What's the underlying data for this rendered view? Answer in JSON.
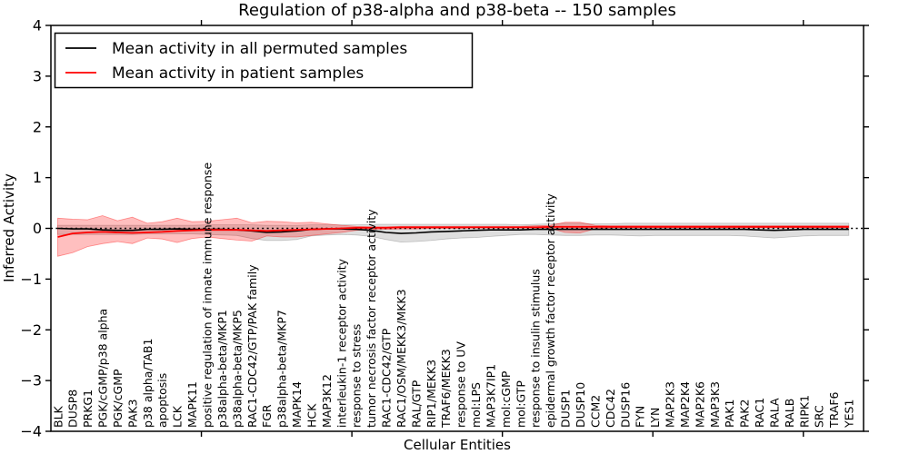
{
  "colors": {
    "permuted_line": "#000000",
    "patient_line": "#ff0000",
    "permuted_band": "#000000",
    "patient_band": "#ff0000",
    "zero_line": "#000000",
    "frame": "#000000",
    "background": "#ffffff"
  },
  "legend": {
    "position": "upper left",
    "entries": [
      {
        "label": "Mean activity in all permuted samples",
        "color": "#000000"
      },
      {
        "label": "Mean activity in patient samples",
        "color": "#ff0000"
      }
    ]
  },
  "chart_data": {
    "type": "line",
    "title": "Regulation of p38-alpha and p38-beta -- 150 samples",
    "xlabel": "Cellular Entities",
    "ylabel": "Inferred Activity",
    "ylim": [
      -4,
      4
    ],
    "yticks": [
      -4,
      -3,
      -2,
      -1,
      0,
      1,
      2,
      3,
      4
    ],
    "xticks_positions": [
      10,
      20,
      30,
      40,
      50
    ],
    "grid": false,
    "legend_position": "upper left",
    "zero_line": {
      "y": 0,
      "style": "dotted",
      "color": "#000000"
    },
    "categories": [
      "BLK",
      "DUSP8",
      "PRKG1",
      "PGK/cGMP/p38 alpha",
      "PGK/cGMP",
      "PAK3",
      "p38 alpha/TAB1",
      "apoptosis",
      "LCK",
      "MAPK11",
      "positive regulation of innate immune response",
      "p38alpha-beta/MKP1",
      "p38alpha-beta/MKP5",
      "RAC1-CDC42/GTP/PAK family",
      "FGR",
      "p38alpha-beta/MKP7",
      "MAPK14",
      "HCK",
      "MAP3K12",
      "interleukin-1 receptor activity",
      "response to stress",
      "tumor necrosis factor receptor activity",
      "RAC1-CDC42/GTP",
      "RAC1/OSM/MEKK3/MKK3",
      "RAL/GTP",
      "RIP1/MEKK3",
      "TRAF6/MEKK3",
      "response to UV",
      "mol:LPS",
      "MAP3K7IP1",
      "mol:cGMP",
      "mol:GTP",
      "response to insulin stimulus",
      "epidermal growth factor receptor activity",
      "DUSP1",
      "DUSP10",
      "CCM2",
      "CDC42",
      "DUSP16",
      "FYN",
      "LYN",
      "MAP2K3",
      "MAP2K4",
      "MAP2K6",
      "MAP3K3",
      "PAK1",
      "PAK2",
      "RAC1",
      "RALA",
      "RALB",
      "RIPK1",
      "SRC",
      "TRAF6",
      "YES1"
    ],
    "series": [
      {
        "name": "Mean activity in all permuted samples",
        "color": "#000000",
        "values": [
          0.0,
          -0.01,
          -0.01,
          -0.03,
          -0.04,
          -0.04,
          -0.02,
          -0.02,
          -0.01,
          -0.02,
          -0.02,
          -0.02,
          -0.03,
          -0.05,
          -0.08,
          -0.07,
          -0.05,
          -0.02,
          -0.01,
          -0.01,
          -0.02,
          -0.04,
          -0.08,
          -0.1,
          -0.09,
          -0.07,
          -0.06,
          -0.05,
          -0.04,
          -0.03,
          -0.03,
          -0.03,
          -0.02,
          -0.02,
          -0.02,
          -0.02,
          -0.02,
          -0.02,
          -0.02,
          -0.02,
          -0.02,
          -0.02,
          -0.02,
          -0.02,
          -0.02,
          -0.02,
          -0.02,
          -0.03,
          -0.04,
          -0.03,
          -0.02,
          -0.02,
          -0.02,
          -0.02
        ],
        "band_upper": [
          0.06,
          0.06,
          0.06,
          0.06,
          0.06,
          0.06,
          0.06,
          0.06,
          0.06,
          0.06,
          0.07,
          0.07,
          0.07,
          0.07,
          0.06,
          0.06,
          0.06,
          0.07,
          0.07,
          0.07,
          0.07,
          0.08,
          0.08,
          0.08,
          0.08,
          0.08,
          0.08,
          0.08,
          0.08,
          0.08,
          0.08,
          0.07,
          0.08,
          0.09,
          0.1,
          0.1,
          0.09,
          0.09,
          0.1,
          0.1,
          0.1,
          0.1,
          0.1,
          0.1,
          0.1,
          0.1,
          0.1,
          0.1,
          0.1,
          0.1,
          0.1,
          0.1,
          0.1,
          0.1
        ],
        "band_lower": [
          -0.12,
          -0.12,
          -0.12,
          -0.12,
          -0.12,
          -0.12,
          -0.11,
          -0.11,
          -0.11,
          -0.11,
          -0.12,
          -0.13,
          -0.14,
          -0.2,
          -0.24,
          -0.24,
          -0.22,
          -0.15,
          -0.13,
          -0.12,
          -0.13,
          -0.16,
          -0.22,
          -0.27,
          -0.26,
          -0.24,
          -0.21,
          -0.19,
          -0.18,
          -0.16,
          -0.14,
          -0.12,
          -0.12,
          -0.13,
          -0.14,
          -0.14,
          -0.13,
          -0.13,
          -0.14,
          -0.15,
          -0.14,
          -0.14,
          -0.14,
          -0.14,
          -0.14,
          -0.14,
          -0.15,
          -0.17,
          -0.19,
          -0.17,
          -0.15,
          -0.14,
          -0.14,
          -0.14
        ]
      },
      {
        "name": "Mean activity in patient samples",
        "color": "#ff0000",
        "values": [
          -0.17,
          -0.1,
          -0.08,
          -0.07,
          -0.08,
          -0.09,
          -0.08,
          -0.07,
          -0.05,
          -0.04,
          -0.03,
          -0.03,
          -0.03,
          -0.04,
          -0.05,
          -0.04,
          -0.03,
          -0.02,
          -0.01,
          0.0,
          0.01,
          0.01,
          0.01,
          0.02,
          0.02,
          0.02,
          0.02,
          0.02,
          0.02,
          0.02,
          0.02,
          0.02,
          0.02,
          0.03,
          0.03,
          0.03,
          0.03,
          0.03,
          0.03,
          0.03,
          0.03,
          0.03,
          0.03,
          0.03,
          0.03,
          0.03,
          0.03,
          0.03,
          0.03,
          0.03,
          0.03,
          0.03,
          0.03,
          0.03
        ],
        "band_upper": [
          0.2,
          0.18,
          0.17,
          0.25,
          0.15,
          0.22,
          0.1,
          0.13,
          0.2,
          0.13,
          0.14,
          0.17,
          0.2,
          0.11,
          0.14,
          0.13,
          0.11,
          0.12,
          0.09,
          0.06,
          0.04,
          0.03,
          0.03,
          0.04,
          0.04,
          0.04,
          0.04,
          0.04,
          0.04,
          0.04,
          0.04,
          0.04,
          0.05,
          0.06,
          0.12,
          0.12,
          0.06,
          0.05,
          0.05,
          0.05,
          0.05,
          0.05,
          0.05,
          0.05,
          0.05,
          0.05,
          0.05,
          0.05,
          0.05,
          0.05,
          0.05,
          0.05,
          0.05,
          0.05
        ],
        "band_lower": [
          -0.55,
          -0.48,
          -0.36,
          -0.3,
          -0.26,
          -0.3,
          -0.19,
          -0.21,
          -0.28,
          -0.2,
          -0.17,
          -0.2,
          -0.23,
          -0.25,
          -0.15,
          -0.17,
          -0.17,
          -0.14,
          -0.11,
          -0.08,
          -0.04,
          -0.02,
          -0.02,
          -0.01,
          -0.01,
          0.0,
          0.0,
          0.0,
          0.01,
          0.01,
          0.01,
          0.01,
          0.01,
          0.0,
          -0.08,
          -0.09,
          -0.01,
          0.01,
          0.01,
          0.01,
          0.01,
          0.01,
          0.01,
          0.01,
          0.01,
          0.01,
          0.01,
          0.01,
          0.01,
          0.01,
          0.01,
          0.01,
          0.01,
          0.01
        ]
      }
    ]
  }
}
